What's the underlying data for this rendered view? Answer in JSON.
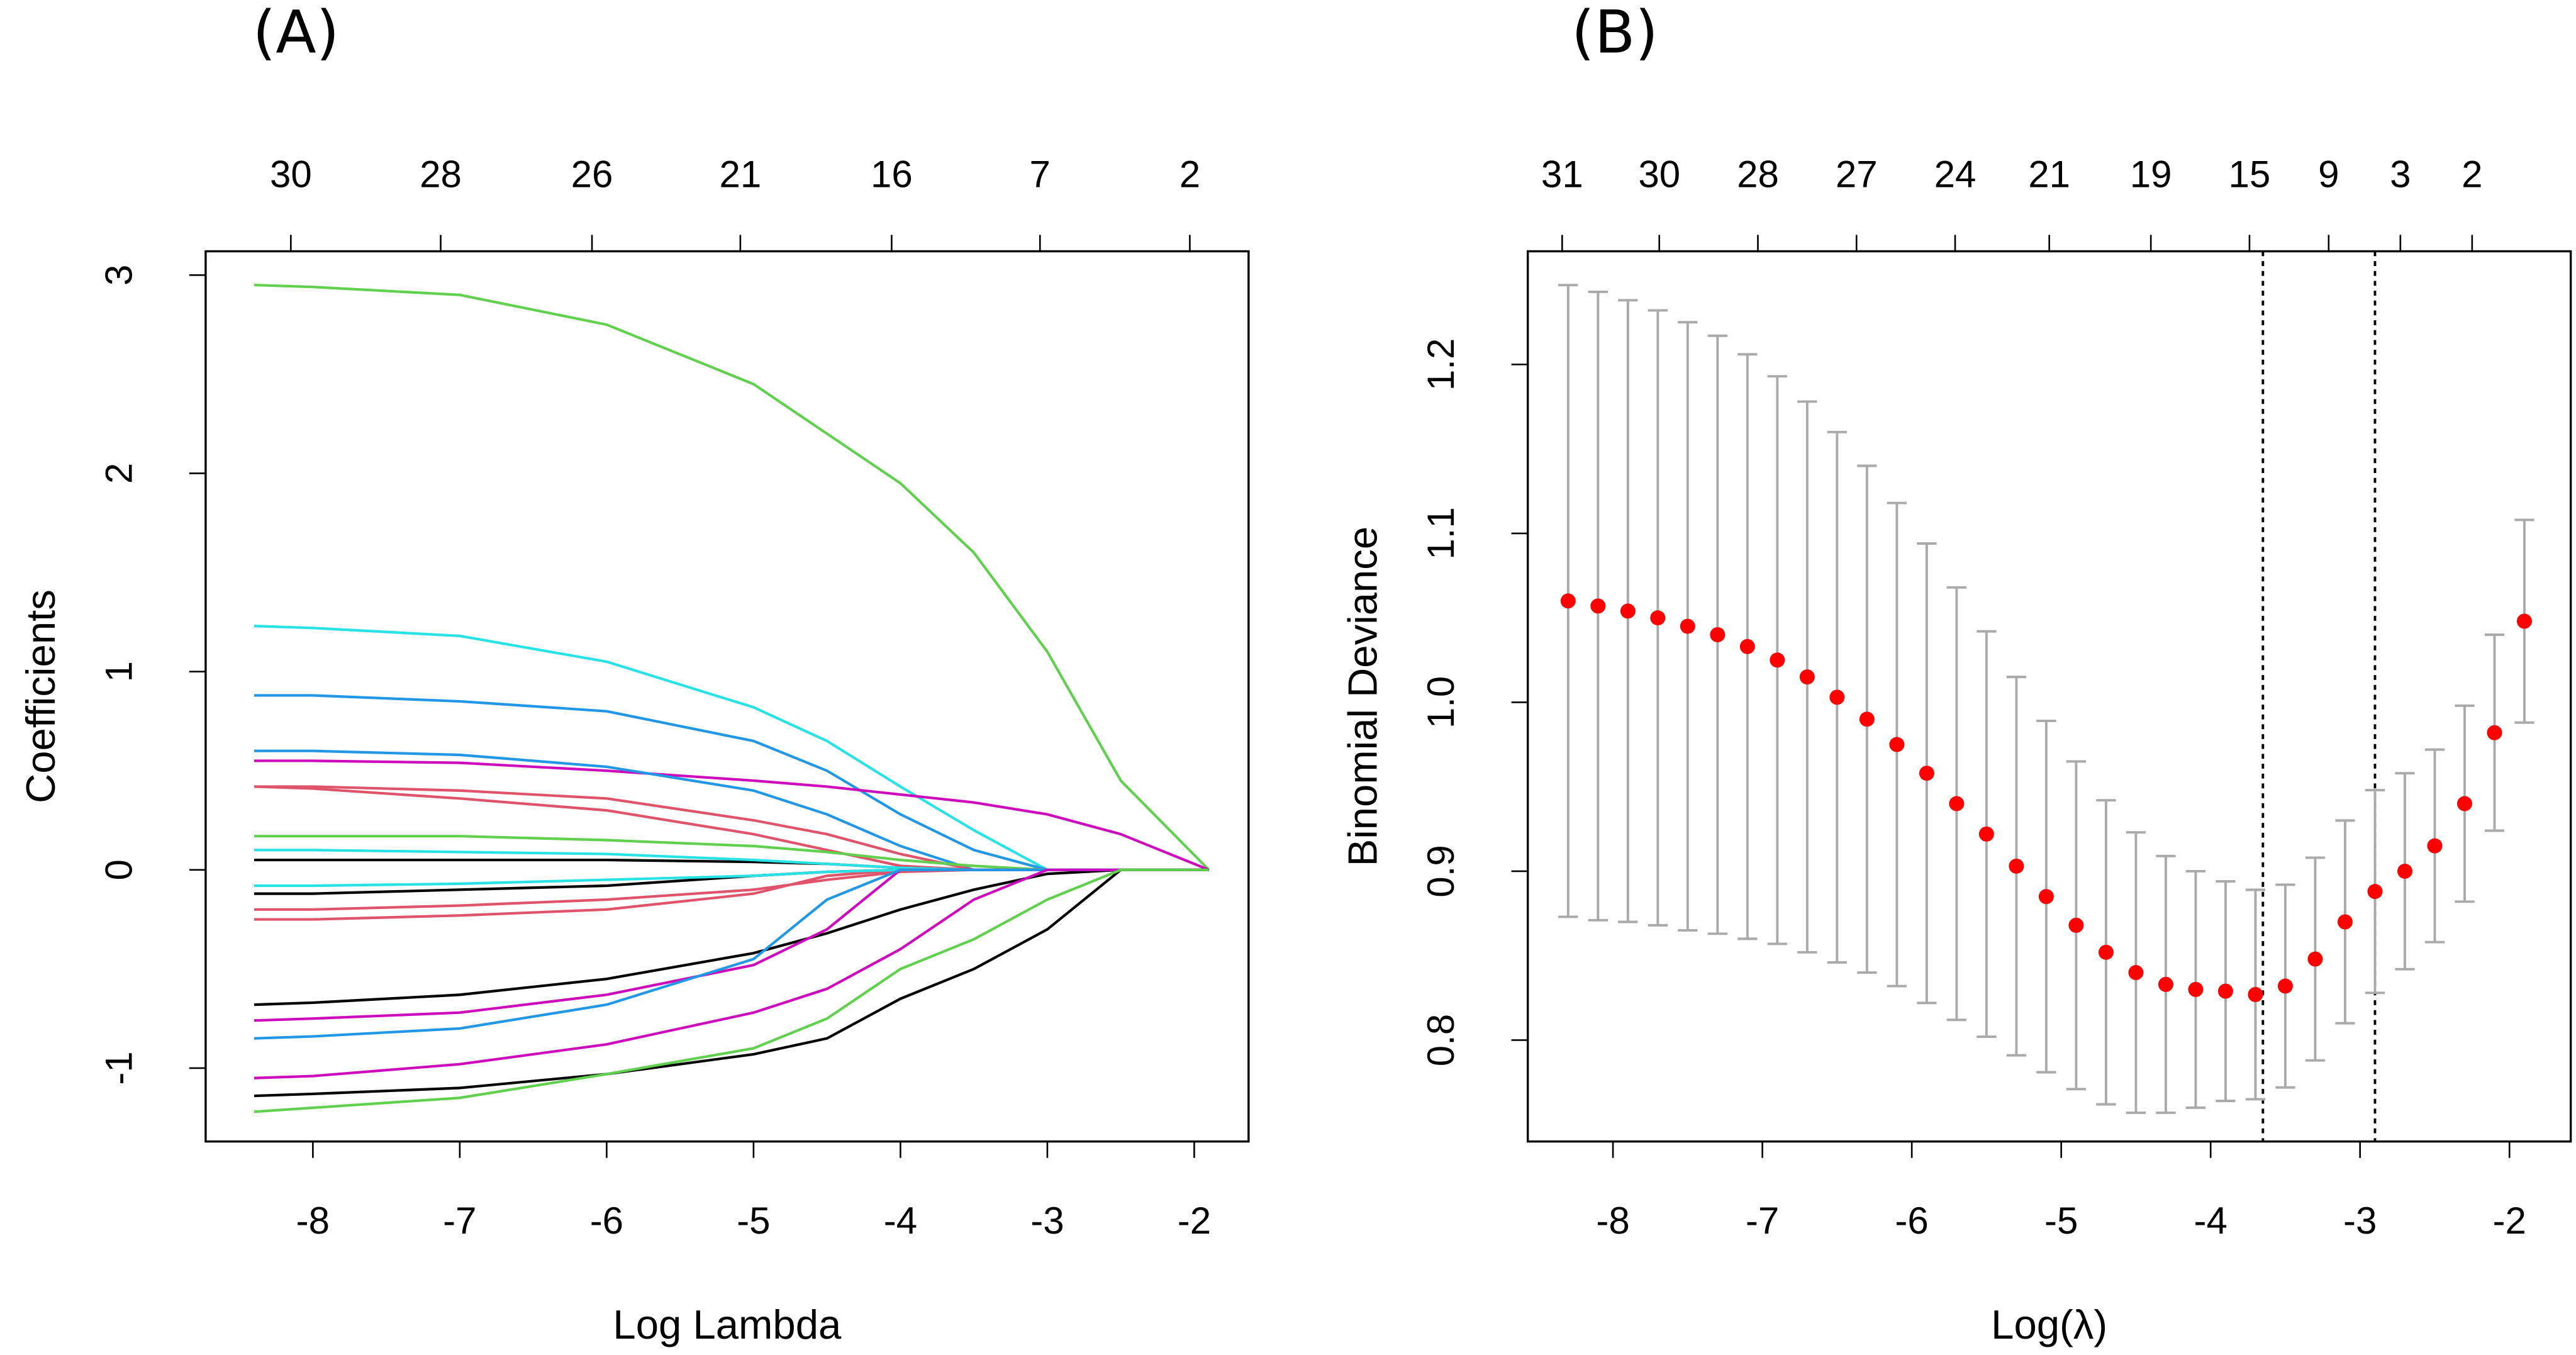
{
  "chart_data": [
    {
      "type": "line",
      "panel_label": "(A)",
      "xlabel": "Log Lambda",
      "ylabel": "Coefficients",
      "xlim": [
        -8.73,
        -1.63
      ],
      "ylim": [
        -1.37,
        3.12
      ],
      "xticks": [
        -8,
        -7,
        -6,
        -5,
        -4,
        -3,
        -2
      ],
      "yticks": [
        -1,
        0,
        1,
        2,
        3
      ],
      "top_ticks": [
        {
          "value": -8.15,
          "label": "30"
        },
        {
          "value": -7.13,
          "label": "28"
        },
        {
          "value": -6.1,
          "label": "26"
        },
        {
          "value": -5.09,
          "label": "21"
        },
        {
          "value": -4.06,
          "label": "16"
        },
        {
          "value": -3.05,
          "label": "7"
        },
        {
          "value": -2.03,
          "label": "2"
        }
      ],
      "x": [
        -8.4,
        -8,
        -7,
        -6,
        -5,
        -4.5,
        -4,
        -3.5,
        -3,
        -2.5,
        -1.9
      ],
      "series": [
        {
          "color": "#61d04f",
          "values": [
            2.95,
            2.94,
            2.9,
            2.75,
            2.45,
            2.2,
            1.95,
            1.6,
            1.1,
            0.45,
            0
          ]
        },
        {
          "color": "#28e2e5",
          "values": [
            1.23,
            1.22,
            1.18,
            1.05,
            0.82,
            0.65,
            0.42,
            0.2,
            0,
            0,
            0
          ]
        },
        {
          "color": "#2297e6",
          "values": [
            0.88,
            0.88,
            0.85,
            0.8,
            0.65,
            0.5,
            0.28,
            0.1,
            0,
            0,
            0
          ]
        },
        {
          "color": "#cd0bbc",
          "values": [
            0.55,
            0.55,
            0.54,
            0.5,
            0.45,
            0.42,
            0.38,
            0.34,
            0.28,
            0.18,
            0
          ]
        },
        {
          "color": "#2297e6",
          "values": [
            0.6,
            0.6,
            0.58,
            0.52,
            0.4,
            0.28,
            0.12,
            0,
            0,
            0,
            0
          ]
        },
        {
          "color": "#df536b",
          "values": [
            0.42,
            0.42,
            0.4,
            0.36,
            0.25,
            0.18,
            0.08,
            0,
            0,
            0,
            0
          ]
        },
        {
          "color": "#df536b",
          "values": [
            0.42,
            0.41,
            0.36,
            0.3,
            0.18,
            0.1,
            0.02,
            0,
            0,
            0,
            0
          ]
        },
        {
          "color": "#61d04f",
          "values": [
            0.17,
            0.17,
            0.17,
            0.15,
            0.12,
            0.09,
            0.05,
            0.02,
            0,
            0,
            0
          ]
        },
        {
          "color": "#000000",
          "values": [
            0.05,
            0.05,
            0.05,
            0.05,
            0.04,
            0.03,
            0.01,
            0,
            0,
            0,
            0
          ]
        },
        {
          "color": "#28e2e5",
          "values": [
            0.1,
            0.1,
            0.09,
            0.08,
            0.05,
            0.03,
            0.01,
            0,
            0,
            0,
            0
          ]
        },
        {
          "color": "#000000",
          "values": [
            -0.12,
            -0.12,
            -0.1,
            -0.08,
            -0.03,
            -0.01,
            0,
            0,
            0,
            0,
            0
          ]
        },
        {
          "color": "#df536b",
          "values": [
            -0.2,
            -0.2,
            -0.18,
            -0.15,
            -0.1,
            -0.05,
            -0.01,
            0,
            0,
            0,
            0
          ]
        },
        {
          "color": "#df536b",
          "values": [
            -0.25,
            -0.25,
            -0.23,
            -0.2,
            -0.12,
            -0.03,
            0,
            0,
            0,
            0,
            0
          ]
        },
        {
          "color": "#28e2e5",
          "values": [
            -0.08,
            -0.08,
            -0.07,
            -0.05,
            -0.03,
            -0.01,
            0,
            0,
            0,
            0,
            0
          ]
        },
        {
          "color": "#000000",
          "values": [
            -0.68,
            -0.67,
            -0.63,
            -0.55,
            -0.42,
            -0.32,
            -0.2,
            -0.1,
            -0.02,
            0,
            0
          ]
        },
        {
          "color": "#cd0bbc",
          "values": [
            -0.76,
            -0.75,
            -0.72,
            -0.63,
            -0.48,
            -0.3,
            0,
            0,
            0,
            0,
            0
          ]
        },
        {
          "color": "#2297e6",
          "values": [
            -0.85,
            -0.84,
            -0.8,
            -0.68,
            -0.45,
            -0.15,
            0,
            0,
            0,
            0,
            0
          ]
        },
        {
          "color": "#cd0bbc",
          "values": [
            -1.05,
            -1.04,
            -0.98,
            -0.88,
            -0.72,
            -0.6,
            -0.4,
            -0.15,
            0,
            0,
            0
          ]
        },
        {
          "color": "#000000",
          "values": [
            -1.14,
            -1.13,
            -1.1,
            -1.03,
            -0.93,
            -0.85,
            -0.65,
            -0.5,
            -0.3,
            0,
            0
          ]
        },
        {
          "color": "#61d04f",
          "values": [
            -1.22,
            -1.2,
            -1.15,
            -1.03,
            -0.9,
            -0.75,
            -0.5,
            -0.35,
            -0.15,
            0,
            0
          ]
        }
      ]
    },
    {
      "type": "errorbar",
      "panel_label": "(B)",
      "xlabel": "Log(λ)",
      "ylabel": "Binomial Deviance",
      "xlim": [
        -8.57,
        -1.59
      ],
      "ylim": [
        0.74,
        1.267
      ],
      "xticks": [
        -8,
        -7,
        -6,
        -5,
        -4,
        -3,
        -2
      ],
      "yticks": [
        0.8,
        0.9,
        {
          "value": 1.0,
          "label": "1.0"
        },
        1.1,
        1.2
      ],
      "top_ticks": [
        {
          "value": -8.34,
          "label": "31"
        },
        {
          "value": -7.69,
          "label": "30"
        },
        {
          "value": -7.03,
          "label": "28"
        },
        {
          "value": -6.37,
          "label": "27"
        },
        {
          "value": -5.71,
          "label": "24"
        },
        {
          "value": -5.08,
          "label": "21"
        },
        {
          "value": -4.4,
          "label": "19"
        },
        {
          "value": -3.74,
          "label": "15"
        },
        {
          "value": -3.21,
          "label": "9"
        },
        {
          "value": -2.73,
          "label": "3"
        },
        {
          "value": -2.25,
          "label": "2"
        }
      ],
      "color": "#ff0000",
      "error_color": "#aaaaaa",
      "vlines": [
        -3.65,
        -2.9
      ],
      "x": [
        -8.3,
        -8.1,
        -7.9,
        -7.7,
        -7.5,
        -7.3,
        -7.1,
        -6.9,
        -6.7,
        -6.5,
        -6.3,
        -6.1,
        -5.9,
        -5.7,
        -5.5,
        -5.3,
        -5.1,
        -4.9,
        -4.7,
        -4.5,
        -4.3,
        -4.1,
        -3.9,
        -3.7,
        -3.5,
        -3.3,
        -3.1,
        -2.9,
        -2.7,
        -2.5,
        -2.3,
        -2.1,
        -1.9
      ],
      "values": [
        1.06,
        1.057,
        1.054,
        1.05,
        1.045,
        1.04,
        1.033,
        1.025,
        1.015,
        1.003,
        0.99,
        0.975,
        0.958,
        0.94,
        0.922,
        0.903,
        0.885,
        0.868,
        0.852,
        0.84,
        0.833,
        0.83,
        0.829,
        0.827,
        0.832,
        0.848,
        0.87,
        0.888,
        0.9,
        0.915,
        0.94,
        0.982,
        1.048
      ],
      "errors": [
        0.187,
        0.186,
        0.184,
        0.182,
        0.18,
        0.177,
        0.173,
        0.168,
        0.163,
        0.157,
        0.15,
        0.143,
        0.136,
        0.128,
        0.12,
        0.112,
        0.104,
        0.097,
        0.09,
        0.083,
        0.076,
        0.07,
        0.065,
        0.062,
        0.06,
        0.06,
        0.06,
        0.06,
        0.058,
        0.057,
        0.058,
        0.058,
        0.06
      ]
    }
  ]
}
